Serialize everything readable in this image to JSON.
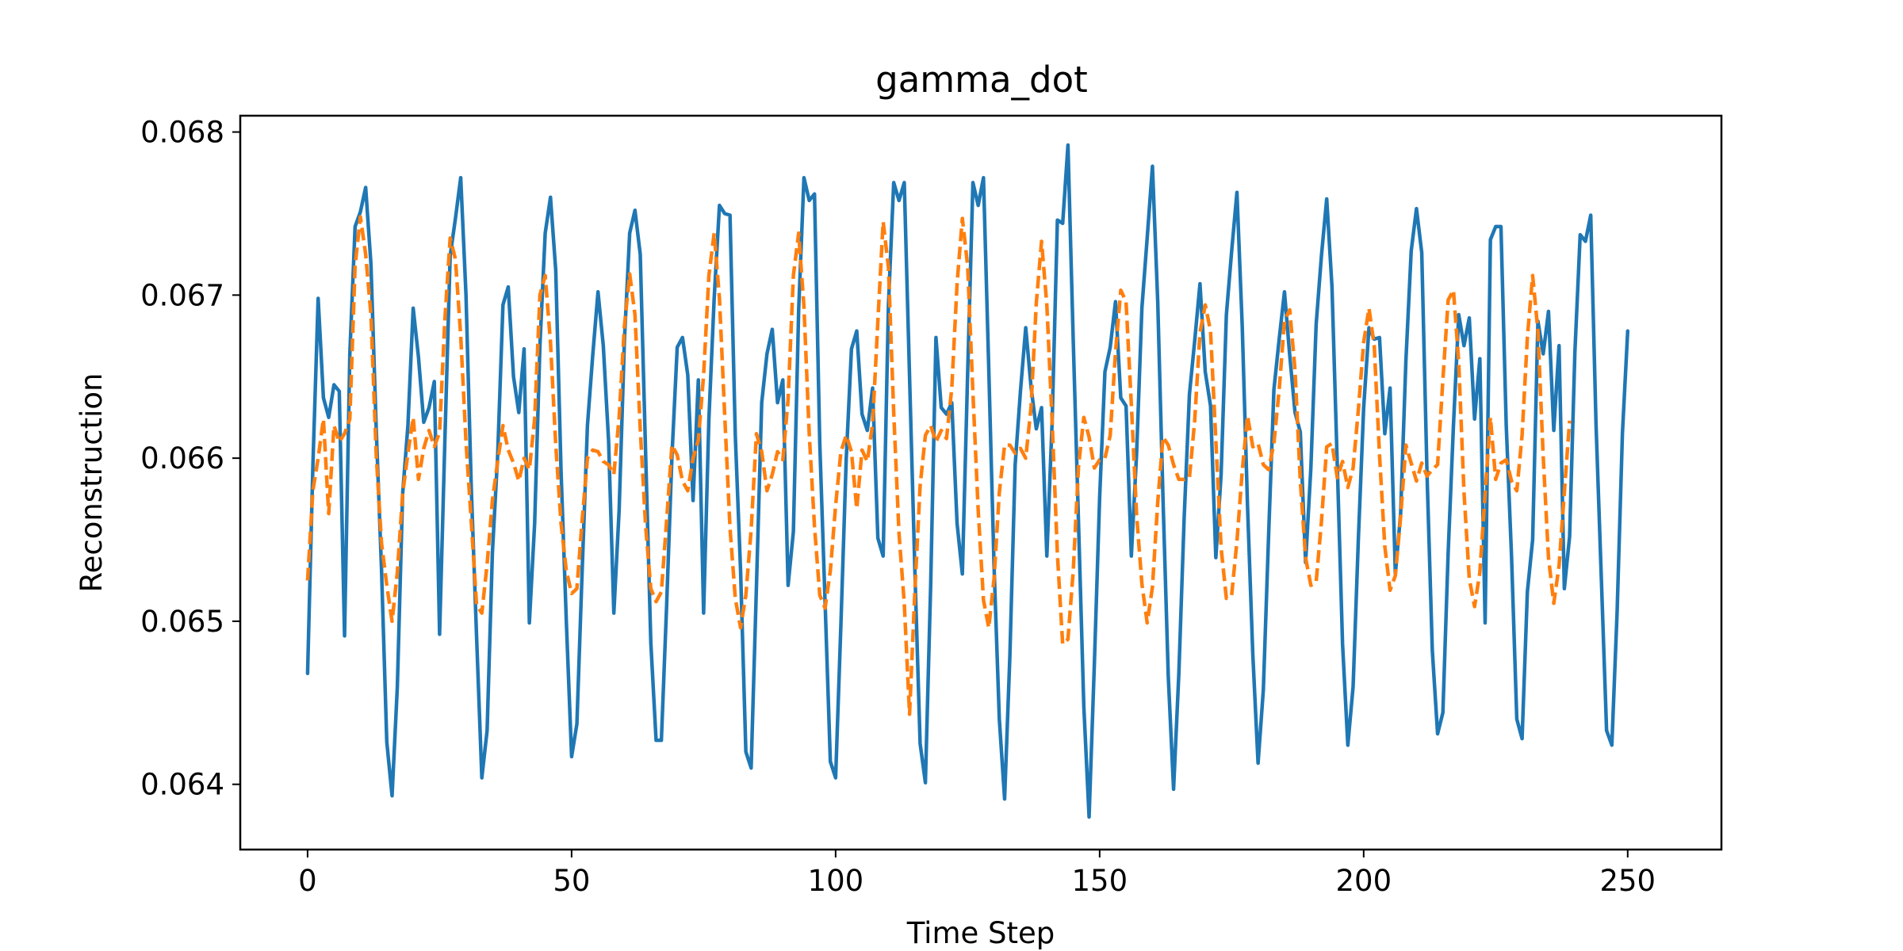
{
  "chart_data": {
    "type": "line",
    "title": "gamma_dot",
    "xlabel": "Time Step",
    "ylabel": "Reconstruction",
    "xlim": [
      -12.75,
      267.75
    ],
    "ylim": [
      0.0636,
      0.0681
    ],
    "xticks": [
      0,
      50,
      100,
      150,
      200,
      250
    ],
    "xtick_labels": [
      "0",
      "50",
      "100",
      "150",
      "200",
      "250"
    ],
    "yticks": [
      0.064,
      0.065,
      0.066,
      0.067,
      0.068
    ],
    "ytick_labels": [
      "0.064",
      "0.065",
      "0.066",
      "0.067",
      "0.068"
    ],
    "grid": false,
    "legend": false,
    "series": [
      {
        "style": "solid",
        "color": "#1f77b4",
        "y": [
          0.06468,
          0.06595,
          0.06698,
          0.06637,
          0.06625,
          0.06645,
          0.06641,
          0.06491,
          0.06664,
          0.06742,
          0.06751,
          0.06766,
          0.06719,
          0.06618,
          0.06532,
          0.06426,
          0.06393,
          0.0646,
          0.06578,
          0.0662,
          0.06692,
          0.06662,
          0.06622,
          0.06631,
          0.06647,
          0.06492,
          0.06611,
          0.06724,
          0.06747,
          0.06772,
          0.067,
          0.06582,
          0.06491,
          0.06404,
          0.06433,
          0.06542,
          0.06602,
          0.06694,
          0.06705,
          0.0665,
          0.06628,
          0.06667,
          0.06499,
          0.0656,
          0.06669,
          0.06738,
          0.0676,
          0.06715,
          0.06592,
          0.065,
          0.06417,
          0.06437,
          0.06531,
          0.0662,
          0.06663,
          0.06702,
          0.06669,
          0.06611,
          0.06505,
          0.06568,
          0.06672,
          0.06738,
          0.06752,
          0.06725,
          0.06605,
          0.06487,
          0.06427,
          0.06427,
          0.0651,
          0.06601,
          0.06668,
          0.06674,
          0.06651,
          0.06574,
          0.06648,
          0.06505,
          0.06624,
          0.06698,
          0.06755,
          0.0675,
          0.06749,
          0.06614,
          0.06531,
          0.0642,
          0.0641,
          0.06521,
          0.06634,
          0.06664,
          0.06679,
          0.06634,
          0.06648,
          0.06522,
          0.06555,
          0.06691,
          0.06772,
          0.06758,
          0.06762,
          0.06609,
          0.06512,
          0.06414,
          0.06404,
          0.06498,
          0.06599,
          0.06667,
          0.06678,
          0.06627,
          0.06617,
          0.06643,
          0.06551,
          0.0654,
          0.06694,
          0.06769,
          0.06758,
          0.06769,
          0.0665,
          0.06532,
          0.06425,
          0.06401,
          0.06522,
          0.06674,
          0.06631,
          0.06627,
          0.06634,
          0.0656,
          0.06529,
          0.06652,
          0.06769,
          0.06755,
          0.06772,
          0.06655,
          0.06534,
          0.0644,
          0.06391,
          0.06479,
          0.06596,
          0.06641,
          0.0668,
          0.06644,
          0.06618,
          0.06631,
          0.0654,
          0.06622,
          0.06746,
          0.06744,
          0.06792,
          0.06672,
          0.0656,
          0.06448,
          0.0638,
          0.06474,
          0.06576,
          0.06653,
          0.06668,
          0.06696,
          0.06637,
          0.06632,
          0.0654,
          0.06603,
          0.06692,
          0.06735,
          0.06779,
          0.06696,
          0.06575,
          0.06466,
          0.06397,
          0.06468,
          0.06563,
          0.06639,
          0.06672,
          0.06707,
          0.06653,
          0.06632,
          0.06539,
          0.0659,
          0.06688,
          0.06727,
          0.06763,
          0.06681,
          0.06571,
          0.0648,
          0.06413,
          0.06458,
          0.06553,
          0.06642,
          0.06673,
          0.06702,
          0.06663,
          0.06628,
          0.06616,
          0.06536,
          0.06594,
          0.06682,
          0.06724,
          0.06759,
          0.06705,
          0.06596,
          0.06486,
          0.06424,
          0.0646,
          0.06551,
          0.06631,
          0.0668,
          0.06673,
          0.06674,
          0.06615,
          0.06643,
          0.06529,
          0.06566,
          0.0666,
          0.06727,
          0.06753,
          0.06726,
          0.0659,
          0.06482,
          0.06431,
          0.06444,
          0.06542,
          0.0662,
          0.06688,
          0.06669,
          0.06686,
          0.06624,
          0.06661,
          0.06499,
          0.06734,
          0.06742,
          0.06742,
          0.0662,
          0.0654,
          0.0644,
          0.06428,
          0.06518,
          0.0655,
          0.06684,
          0.06664,
          0.0669,
          0.06617,
          0.06669,
          0.0652,
          0.06552,
          0.06665,
          0.06737,
          0.06733,
          0.06749,
          0.06621,
          0.06527,
          0.06433,
          0.06424,
          0.06506,
          0.06615,
          0.06678
        ]
      },
      {
        "style": "dashed",
        "color": "#ff7f0e",
        "y": [
          0.06525,
          0.0658,
          0.066,
          0.06624,
          0.06566,
          0.0662,
          0.0661,
          0.06615,
          0.06624,
          0.06718,
          0.06748,
          0.06725,
          0.06688,
          0.06602,
          0.06548,
          0.06522,
          0.065,
          0.0653,
          0.06578,
          0.06603,
          0.06625,
          0.06587,
          0.06606,
          0.06617,
          0.06607,
          0.06616,
          0.06685,
          0.06735,
          0.06722,
          0.06675,
          0.0661,
          0.06561,
          0.0651,
          0.06505,
          0.06535,
          0.06574,
          0.06598,
          0.0662,
          0.06605,
          0.06597,
          0.06586,
          0.066,
          0.06593,
          0.06624,
          0.067,
          0.06712,
          0.06671,
          0.06608,
          0.0656,
          0.06531,
          0.06517,
          0.0652,
          0.06562,
          0.066,
          0.06605,
          0.06604,
          0.06598,
          0.06596,
          0.0659,
          0.06625,
          0.06681,
          0.06713,
          0.06688,
          0.06618,
          0.06559,
          0.0652,
          0.06512,
          0.06518,
          0.06562,
          0.06608,
          0.06602,
          0.06586,
          0.0658,
          0.066,
          0.06611,
          0.06651,
          0.06712,
          0.06738,
          0.06698,
          0.06626,
          0.06557,
          0.06514,
          0.06496,
          0.06516,
          0.06556,
          0.06615,
          0.06604,
          0.0658,
          0.0659,
          0.06604,
          0.06599,
          0.06636,
          0.06712,
          0.06738,
          0.06693,
          0.06615,
          0.06558,
          0.06516,
          0.06508,
          0.06531,
          0.06571,
          0.06604,
          0.06614,
          0.06604,
          0.06569,
          0.06605,
          0.06598,
          0.06621,
          0.06684,
          0.06745,
          0.06717,
          0.06628,
          0.06554,
          0.06511,
          0.06443,
          0.06518,
          0.06583,
          0.06614,
          0.0662,
          0.0661,
          0.06617,
          0.06612,
          0.06643,
          0.06707,
          0.06747,
          0.06718,
          0.0664,
          0.06568,
          0.06513,
          0.06496,
          0.06526,
          0.06579,
          0.06608,
          0.06608,
          0.06603,
          0.06606,
          0.066,
          0.06631,
          0.06695,
          0.06733,
          0.06694,
          0.06623,
          0.06541,
          0.06486,
          0.06489,
          0.06531,
          0.06595,
          0.06625,
          0.06613,
          0.06594,
          0.06599,
          0.066,
          0.06614,
          0.06665,
          0.06703,
          0.06696,
          0.06633,
          0.06565,
          0.06523,
          0.06499,
          0.06521,
          0.06573,
          0.06613,
          0.06608,
          0.06596,
          0.06587,
          0.06587,
          0.06588,
          0.06623,
          0.06677,
          0.06694,
          0.06678,
          0.06611,
          0.06545,
          0.06514,
          0.06516,
          0.06549,
          0.06592,
          0.06626,
          0.06607,
          0.06609,
          0.06596,
          0.06593,
          0.06609,
          0.06642,
          0.06684,
          0.06691,
          0.06654,
          0.06586,
          0.06539,
          0.06522,
          0.06524,
          0.06561,
          0.06607,
          0.06609,
          0.06588,
          0.06598,
          0.06582,
          0.06594,
          0.0663,
          0.06671,
          0.06692,
          0.06669,
          0.06602,
          0.06546,
          0.06519,
          0.06528,
          0.06564,
          0.06608,
          0.06597,
          0.06586,
          0.06597,
          0.06589,
          0.06593,
          0.06596,
          0.06648,
          0.06697,
          0.06703,
          0.06659,
          0.06579,
          0.06526,
          0.06509,
          0.0653,
          0.06578,
          0.06625,
          0.06587,
          0.06597,
          0.06599,
          0.06586,
          0.0658,
          0.06614,
          0.06674,
          0.06712,
          0.06678,
          0.06601,
          0.06539,
          0.06511,
          0.06534,
          0.06579,
          0.06623
        ]
      }
    ]
  }
}
